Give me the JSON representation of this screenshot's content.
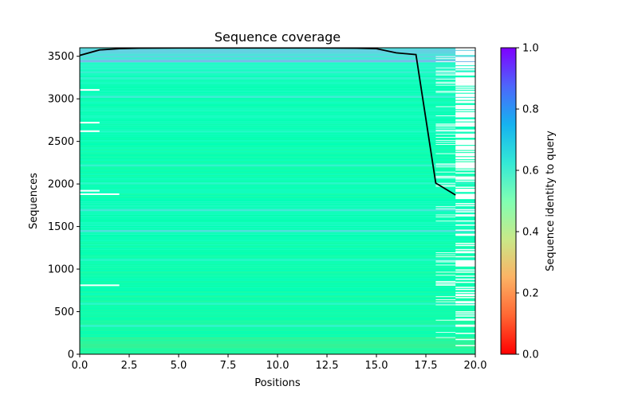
{
  "chart_data": [
    {
      "type": "heatmap",
      "title": "Sequence coverage",
      "xlabel": "Positions",
      "ylabel": "Sequences",
      "xlim": [
        0,
        20
      ],
      "ylim": [
        0,
        3600
      ],
      "xticks": [
        0,
        2.5,
        5,
        7.5,
        10,
        12.5,
        15,
        17.5,
        20
      ],
      "xtick_labels": [
        "0.0",
        "2.5",
        "5.0",
        "7.5",
        "10.0",
        "12.5",
        "15.0",
        "17.5",
        "20.0"
      ],
      "yticks": [
        0,
        500,
        1000,
        1500,
        2000,
        2500,
        3000,
        3500
      ],
      "ytick_labels": [
        "0",
        "500",
        "1000",
        "1500",
        "2000",
        "2500",
        "3000",
        "3500"
      ],
      "grid": false,
      "num_sequences": 3600,
      "num_positions": 20,
      "coverage_end_gaps": {
        "position_18_coverage_from": 0,
        "position_18_coverage_to": 3600,
        "position_19_coverage_approx_sequences": 1870
      },
      "coverage_line": {
        "color": "#000000",
        "x": [
          0,
          1,
          2,
          3,
          4,
          5,
          6,
          7,
          8,
          9,
          10,
          11,
          12,
          13,
          14,
          15,
          16,
          17,
          18,
          19
        ],
        "y": [
          3510,
          3575,
          3590,
          3595,
          3597,
          3598,
          3598,
          3598,
          3598,
          3598,
          3598,
          3598,
          3598,
          3597,
          3595,
          3590,
          3540,
          3520,
          2010,
          1870
        ]
      },
      "identity_bands": [
        {
          "from": 0,
          "to": 200,
          "identity": 0.42
        },
        {
          "from": 200,
          "to": 700,
          "identity": 0.47
        },
        {
          "from": 700,
          "to": 1400,
          "identity": 0.49
        },
        {
          "from": 1400,
          "to": 1800,
          "identity": 0.52
        },
        {
          "from": 1800,
          "to": 2600,
          "identity": 0.5
        },
        {
          "from": 2600,
          "to": 3300,
          "identity": 0.52
        },
        {
          "from": 3300,
          "to": 3450,
          "identity": 0.58
        },
        {
          "from": 3450,
          "to": 3600,
          "identity": 0.65
        }
      ],
      "highlight_rows": [
        {
          "y": 105,
          "identity": 0.4
        },
        {
          "y": 330,
          "identity": 0.6
        },
        {
          "y": 590,
          "identity": 0.58
        },
        {
          "y": 1105,
          "identity": 0.58
        },
        {
          "y": 1445,
          "identity": 0.66
        },
        {
          "y": 1690,
          "identity": 0.64
        },
        {
          "y": 2005,
          "identity": 0.58
        },
        {
          "y": 2215,
          "identity": 0.6
        },
        {
          "y": 3020,
          "identity": 0.62
        },
        {
          "y": 3240,
          "identity": 0.6
        },
        {
          "y": 3440,
          "identity": 0.74
        },
        {
          "y": 3560,
          "identity": 0.7
        }
      ],
      "colorbar": {
        "label": "Sequence identity to query",
        "colormap": "rainbow_r",
        "min": 0.0,
        "max": 1.0,
        "ticks": [
          0.0,
          0.2,
          0.4,
          0.6,
          0.8,
          1.0
        ],
        "tick_labels": [
          "0.0",
          "0.2",
          "0.4",
          "0.6",
          "0.8",
          "1.0"
        ]
      }
    }
  ]
}
